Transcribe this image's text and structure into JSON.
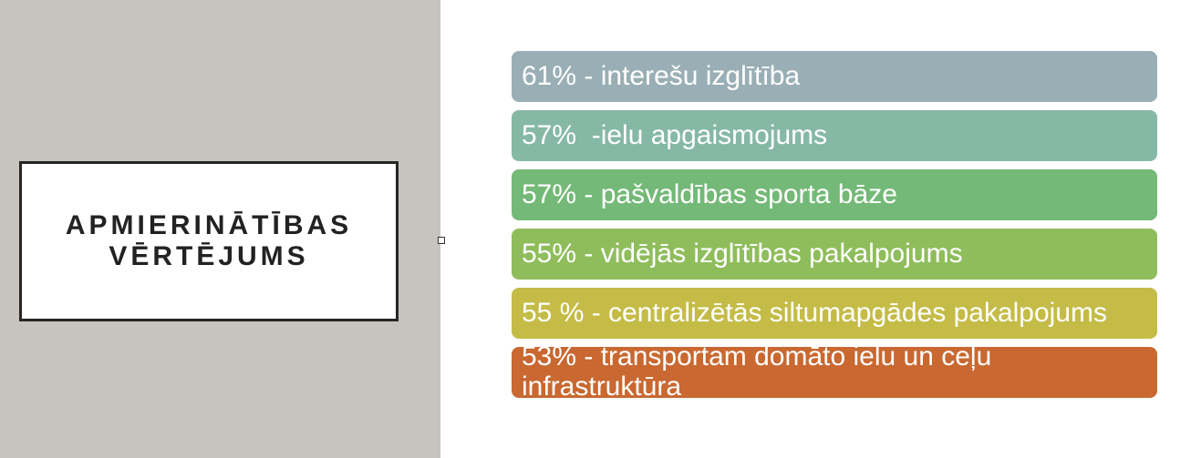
{
  "title": "APMIERINĀTĪBAS\nVĒRTĒJUMS",
  "items": [
    {
      "label": "61% - interešu izglītība",
      "color": "#9aafb5"
    },
    {
      "label": "57%  -ielu apgaismojums",
      "color": "#86b8a6"
    },
    {
      "label": "57% - pašvaldības sporta bāze",
      "color": "#74b977"
    },
    {
      "label": "55% - vidējās izglītības pakalpojums",
      "color": "#8fbd5c"
    },
    {
      "label": "55 % - centralizētās siltumapgādes pakalpojums",
      "color": "#c4bc47"
    },
    {
      "label": "53% - transportam domāto ielu un ceļu infrastruktūra",
      "color": "#c96830"
    }
  ]
}
